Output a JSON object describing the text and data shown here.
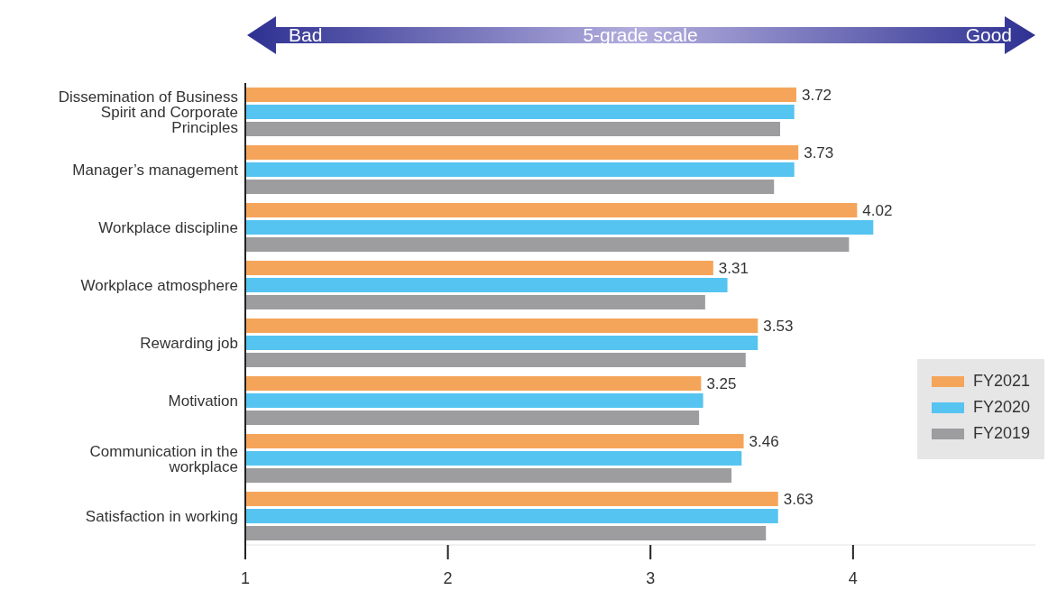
{
  "chart_data": {
    "type": "bar",
    "orientation": "horizontal",
    "categories": [
      "Dissemination of Business Spirit and Corporate Principles",
      "Manager’s management",
      "Workplace discipline",
      "Workplace atmosphere",
      "Rewarding job",
      "Motivation",
      "Communication in the workplace",
      "Satisfaction in working"
    ],
    "series": [
      {
        "name": "FY2021",
        "color": "#f5a55a",
        "values": [
          3.72,
          3.73,
          4.02,
          3.31,
          3.53,
          3.25,
          3.46,
          3.63
        ],
        "value_labels": [
          "3.72",
          "3.73",
          "4.02",
          "3.31",
          "3.53",
          "3.25",
          "3.46",
          "3.63"
        ]
      },
      {
        "name": "FY2020",
        "color": "#56c4f0",
        "values": [
          3.71,
          3.71,
          4.1,
          3.38,
          3.53,
          3.26,
          3.45,
          3.63
        ]
      },
      {
        "name": "FY2019",
        "color": "#9d9d9f",
        "values": [
          3.64,
          3.61,
          3.98,
          3.27,
          3.47,
          3.24,
          3.4,
          3.57
        ]
      }
    ],
    "xlim": [
      1,
      4.9
    ],
    "xticks": [
      1,
      2,
      3,
      4
    ],
    "legend": "right",
    "annotations": [
      "Bad",
      "5-grade scale",
      "Good"
    ]
  }
}
